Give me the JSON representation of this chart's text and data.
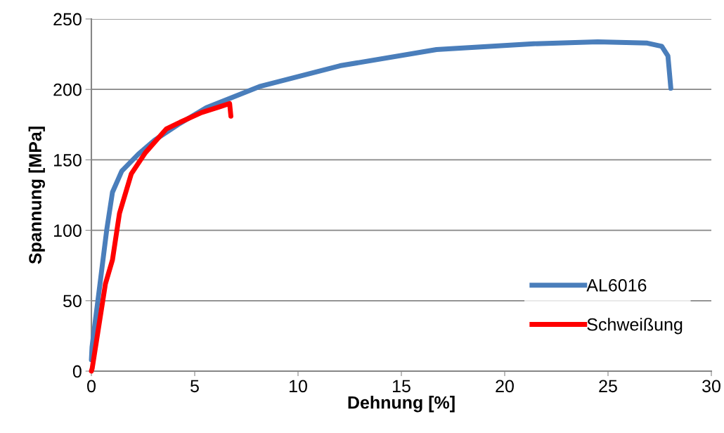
{
  "chart_data": {
    "type": "line",
    "xlabel": "Dehnung [%]",
    "ylabel": "Spannung [MPa]",
    "xlim": [
      0,
      30
    ],
    "xticks": [
      0,
      5,
      10,
      15,
      20,
      25,
      30
    ],
    "ylim": [
      0,
      250
    ],
    "yticks": [
      0,
      50,
      100,
      150,
      200,
      250
    ],
    "grid": "y",
    "legend": "bottom right",
    "marker": "none",
    "line_style": "solid",
    "series": [
      {
        "name": "AL6016",
        "color": "#4a7ebb",
        "x": [
          0,
          0.03,
          0.4,
          0.74,
          1.02,
          1.47,
          2.27,
          3.06,
          4.19,
          5.56,
          8.13,
          12.03,
          16.7,
          21.4,
          24.5,
          26.9,
          27.6,
          27.9,
          28.04
        ],
        "values": [
          8,
          17,
          60,
          100,
          127,
          142,
          154,
          164,
          175,
          187,
          202,
          216.8,
          228.3,
          232.4,
          233.8,
          232.9,
          230.6,
          223.7,
          200.8
        ]
      },
      {
        "name": "Schweißung",
        "color": "#ff0000",
        "x": [
          0,
          0.04,
          0.68,
          1.02,
          1.36,
          1.93,
          2.61,
          3.63,
          4.19,
          5.33,
          6.24,
          6.69,
          6.75
        ],
        "values": [
          0,
          2,
          62,
          79,
          112,
          140,
          155,
          172,
          176,
          183.6,
          187.8,
          190,
          181
        ]
      }
    ]
  }
}
